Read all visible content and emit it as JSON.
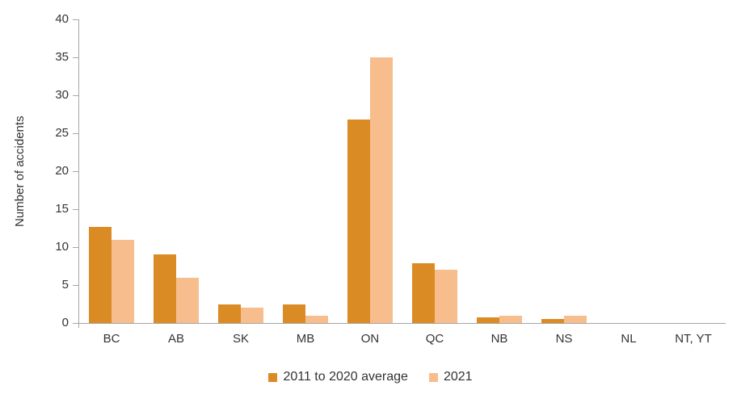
{
  "chart_data": {
    "type": "bar",
    "title": "",
    "xlabel": "",
    "ylabel": "Number of accidents",
    "categories": [
      "BC",
      "AB",
      "SK",
      "MB",
      "ON",
      "QC",
      "NB",
      "NS",
      "NL",
      "NT, YT"
    ],
    "series": [
      {
        "name": "2011 to 2020 average",
        "color": "#db8b23",
        "values": [
          12.7,
          9,
          2.5,
          2.4,
          26.8,
          7.9,
          0.7,
          0.5,
          0,
          0
        ]
      },
      {
        "name": "2021",
        "color": "#f8bd8c",
        "values": [
          11,
          6,
          2,
          1,
          35,
          7,
          1,
          1,
          0,
          0
        ]
      }
    ],
    "ylim": [
      0,
      40
    ],
    "ytick_step": 5,
    "grid": false,
    "legend_position": "bottom"
  },
  "axis": {
    "line_color": "#a6a6a6",
    "text_color": "#333333"
  }
}
